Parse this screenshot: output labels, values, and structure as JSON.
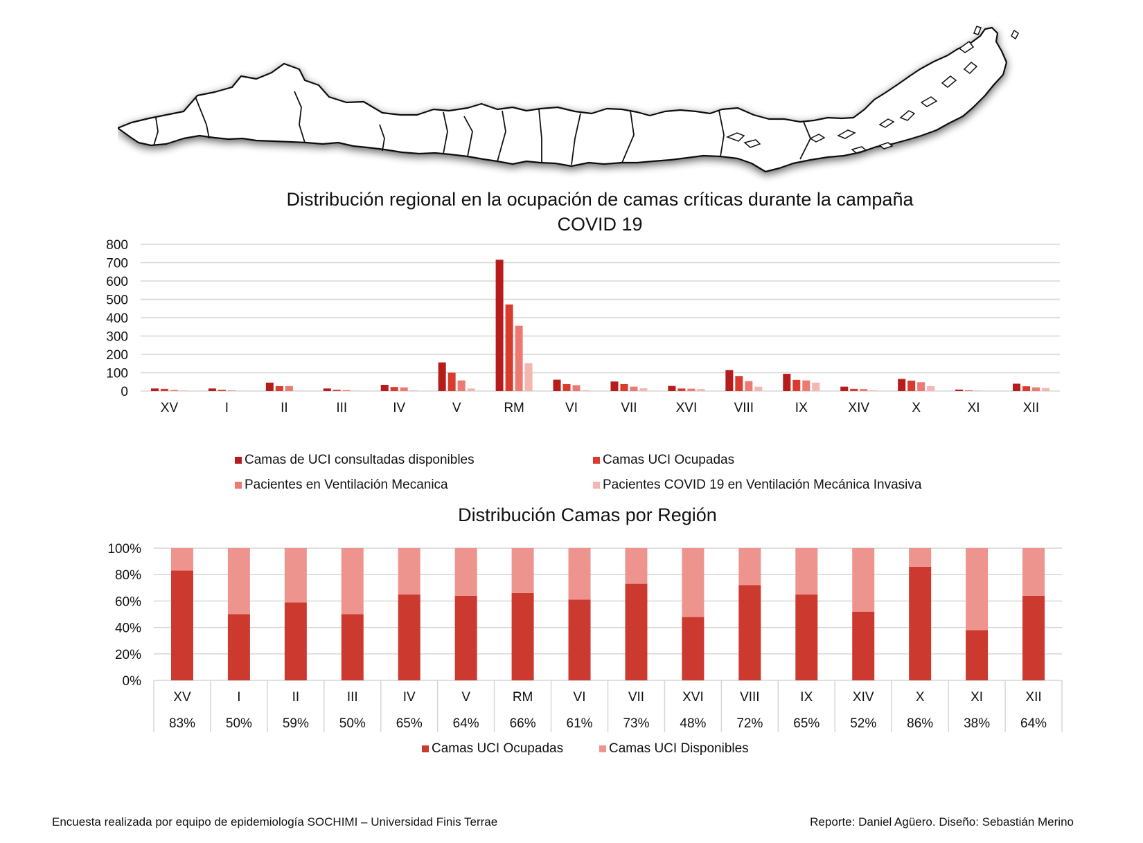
{
  "colors": {
    "camas_disponibles": "#b71c1c",
    "camas_ocupadas": "#d93b2f",
    "ventilacion": "#ec7a72",
    "covid_vmi": "#f5b5b1",
    "uci_ocupadas": "#cc3a2f",
    "uci_disponibles": "#ee948f"
  },
  "map": {
    "icon": "chile-regions-map-icon"
  },
  "chart_data": [
    {
      "type": "bar",
      "title": "Distribución regional en la ocupación de camas críticas durante la campaña COVID 19",
      "title_lines": [
        "Distribución regional en la ocupación de camas críticas durante la campaña",
        "COVID 19"
      ],
      "categories": [
        "XV",
        "I",
        "II",
        "III",
        "IV",
        "V",
        "RM",
        "VI",
        "VII",
        "XVI",
        "VIII",
        "IX",
        "XIV",
        "X",
        "XI",
        "XII"
      ],
      "ylim": [
        0,
        800
      ],
      "yticks": [
        0,
        100,
        200,
        300,
        400,
        500,
        600,
        700,
        800
      ],
      "grid": true,
      "legend_position": "bottom",
      "series": [
        {
          "name": "Camas de UCI consultadas disponibles",
          "color_key": "camas_disponibles",
          "values": [
            14,
            14,
            46,
            14,
            34,
            156,
            716,
            62,
            52,
            28,
            114,
            94,
            24,
            66,
            8,
            40
          ]
        },
        {
          "name": "Camas UCI Ocupadas",
          "color_key": "camas_ocupadas",
          "values": [
            12,
            7,
            27,
            7,
            22,
            100,
            472,
            38,
            38,
            14,
            82,
            61,
            12,
            57,
            3,
            26
          ]
        },
        {
          "name": "Pacientes en Ventilación Mecanica",
          "color_key": "ventilacion",
          "values": [
            6,
            3,
            27,
            5,
            20,
            58,
            356,
            32,
            24,
            13,
            54,
            58,
            11,
            48,
            1,
            20
          ]
        },
        {
          "name": "Pacientes COVID 19 en Ventilación Mecánica Invasiva",
          "color_key": "covid_vmi",
          "values": [
            3,
            1,
            2,
            2,
            4,
            14,
            152,
            5,
            15,
            11,
            24,
            46,
            4,
            27,
            0,
            16
          ]
        }
      ]
    },
    {
      "type": "bar",
      "stacked": true,
      "title": "Distribución Camas por Región",
      "categories": [
        "XV",
        "I",
        "II",
        "III",
        "IV",
        "V",
        "RM",
        "VI",
        "VII",
        "XVI",
        "VIII",
        "IX",
        "XIV",
        "X",
        "XI",
        "XII"
      ],
      "table_row": [
        "83%",
        "50%",
        "59%",
        "50%",
        "65%",
        "64%",
        "66%",
        "61%",
        "73%",
        "48%",
        "72%",
        "65%",
        "52%",
        "86%",
        "38%",
        "64%"
      ],
      "ylim": [
        0,
        100
      ],
      "yticks": [
        "0%",
        "20%",
        "40%",
        "60%",
        "80%",
        "100%"
      ],
      "grid": true,
      "legend_position": "bottom",
      "series": [
        {
          "name": "Camas UCI Ocupadas",
          "color_key": "uci_ocupadas",
          "values": [
            83,
            50,
            59,
            50,
            65,
            64,
            66,
            61,
            73,
            48,
            72,
            65,
            52,
            86,
            38,
            64
          ]
        },
        {
          "name": "Camas UCI Disponibles",
          "color_key": "uci_disponibles",
          "values": [
            17,
            50,
            41,
            50,
            35,
            36,
            34,
            39,
            27,
            52,
            28,
            35,
            48,
            14,
            62,
            36
          ]
        }
      ]
    }
  ],
  "footer": {
    "left": "Encuesta realizada por equipo de epidemiología SOCHIMI – Universidad Finis Terrae",
    "right": "Reporte: Daniel Agüero. Diseño: Sebastián Merino"
  }
}
